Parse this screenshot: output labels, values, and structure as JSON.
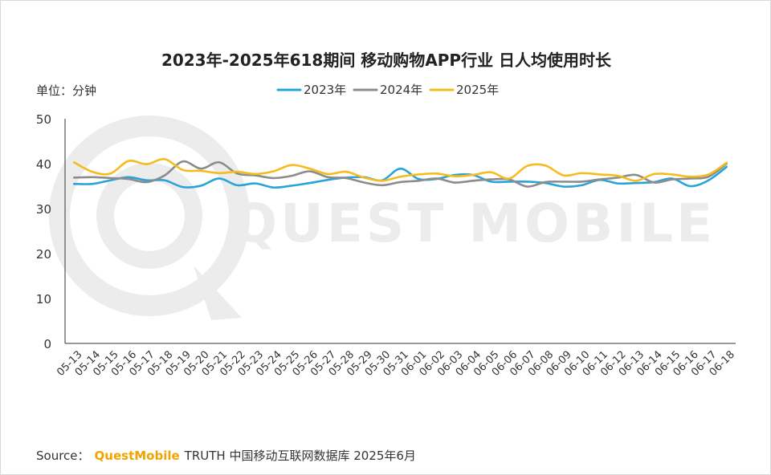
{
  "title": "2023年-2025年618期间 移动购物APP行业 日人均使用时长",
  "unit_label": "单位：分钟",
  "watermark_text": "QUEST MOBILE",
  "source": {
    "label": "Source：",
    "brand": "QuestMobile",
    "text": "TRUTH 中国移动互联网数据库 2025年6月"
  },
  "colors": {
    "s2023": "#2aa4d8",
    "s2024": "#8c8c8c",
    "s2025": "#f7bb1e",
    "axis": "#333333",
    "watermark": "#ececec"
  },
  "chart_data": {
    "type": "line",
    "ylim": [
      0,
      50
    ],
    "yticks": [
      0,
      10,
      20,
      30,
      40,
      50
    ],
    "grid": false,
    "legend_position": "top",
    "x": [
      "05-13",
      "05-14",
      "05-15",
      "05-16",
      "05-17",
      "05-18",
      "05-19",
      "05-20",
      "05-21",
      "05-22",
      "05-23",
      "05-24",
      "05-25",
      "05-26",
      "05-27",
      "05-28",
      "05-29",
      "05-30",
      "05-31",
      "06-01",
      "06-02",
      "06-03",
      "06-04",
      "06-05",
      "06-06",
      "06-07",
      "06-08",
      "06-09",
      "06-10",
      "06-11",
      "06-12",
      "06-13",
      "06-14",
      "06-15",
      "06-16",
      "06-17",
      "06-18"
    ],
    "series": [
      {
        "name": "2023年",
        "values": [
          35.5,
          35.5,
          36.3,
          37.0,
          36.3,
          36.3,
          34.8,
          35.1,
          36.7,
          35.2,
          35.6,
          34.7,
          35.1,
          35.7,
          36.4,
          36.9,
          37.0,
          36.3,
          38.9,
          36.6,
          36.6,
          37.5,
          37.5,
          36.0,
          36.0,
          36.0,
          35.7,
          34.9,
          35.2,
          36.4,
          35.6,
          35.7,
          35.9,
          36.7,
          35.0,
          36.3,
          39.3
        ]
      },
      {
        "name": "2024年",
        "values": [
          36.9,
          37.0,
          36.8,
          36.6,
          35.9,
          37.4,
          40.5,
          38.9,
          40.3,
          37.8,
          37.4,
          36.8,
          37.3,
          38.3,
          37.0,
          36.8,
          35.8,
          35.2,
          35.9,
          36.2,
          36.7,
          35.8,
          36.2,
          36.5,
          36.5,
          34.9,
          35.9,
          36.0,
          36.0,
          36.5,
          36.9,
          37.5,
          35.8,
          36.5,
          36.7,
          37.1,
          40.0
        ]
      },
      {
        "name": "2025年",
        "values": [
          40.3,
          38.2,
          37.8,
          40.6,
          39.9,
          41.0,
          38.6,
          38.4,
          37.9,
          38.2,
          37.7,
          38.3,
          39.7,
          38.9,
          37.7,
          38.2,
          36.9,
          36.2,
          37.1,
          37.6,
          37.8,
          37.2,
          37.5,
          38.1,
          36.7,
          39.5,
          39.6,
          37.4,
          37.9,
          37.6,
          37.3,
          36.2,
          37.7,
          37.6,
          37.1,
          37.6,
          40.2
        ]
      }
    ]
  }
}
